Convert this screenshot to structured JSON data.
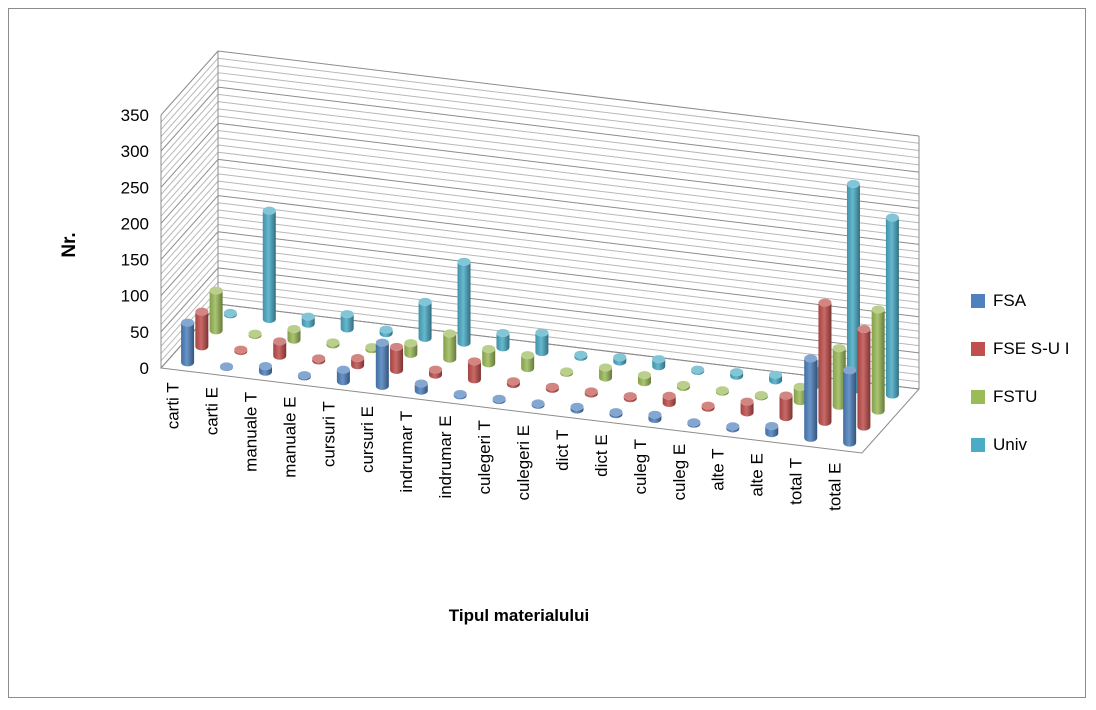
{
  "chart_data": {
    "type": "bar",
    "subtype": "3d-column",
    "title": "",
    "xlabel": "Tipul materialului",
    "ylabel": "Nr.",
    "ylim": [
      0,
      350
    ],
    "yticks": [
      "0",
      "50",
      "100",
      "150",
      "200",
      "250",
      "300",
      "350"
    ],
    "grid": true,
    "legend_position": "right",
    "categories": [
      "carti T",
      "carti E",
      "manuale T",
      "manuale E",
      "cursuri T",
      "cursuri E",
      "indrumar T",
      "indrumar E",
      "culegeri T",
      "culegeri E",
      "dict T",
      "dict E",
      "culeg T",
      "culeg E",
      "alte T",
      "alte E",
      "total T",
      "total E"
    ],
    "series": [
      {
        "name": "FSA",
        "color": "#4f81bd",
        "values": [
          55,
          1,
          8,
          2,
          16,
          60,
          10,
          2,
          2,
          2,
          4,
          3,
          6,
          2,
          3,
          10,
          110,
          100
        ]
      },
      {
        "name": "FSE S-U I",
        "color": "#c0504d",
        "values": [
          48,
          2,
          20,
          3,
          10,
          32,
          7,
          25,
          4,
          3,
          3,
          3,
          10,
          3,
          15,
          30,
          165,
          135
        ]
      },
      {
        "name": "FSTU",
        "color": "#9bbb59",
        "values": [
          55,
          2,
          15,
          3,
          3,
          15,
          35,
          20,
          18,
          2,
          14,
          10,
          3,
          2,
          2,
          20,
          80,
          140
        ]
      },
      {
        "name": "Univ",
        "color": "#4bacc6",
        "values": [
          2,
          150,
          10,
          20,
          5,
          50,
          112,
          20,
          27,
          3,
          6,
          10,
          2,
          5,
          8,
          30,
          285,
          245
        ]
      }
    ]
  }
}
